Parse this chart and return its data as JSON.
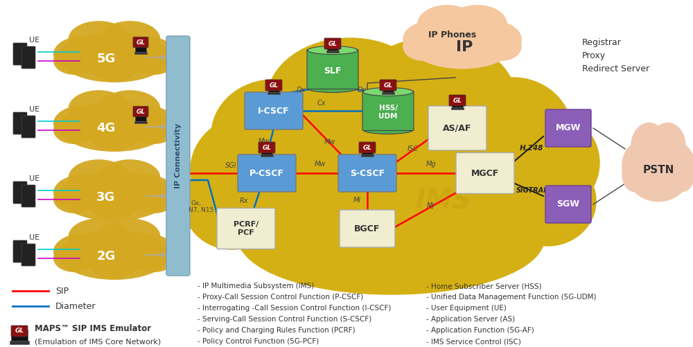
{
  "bg_color": "#ffffff",
  "ims_cloud_color": "#D4A820",
  "ip_phones_cloud_color": "#F5C8A0",
  "pstn_cloud_color": "#F0C8B0",
  "network_cloud_color": "#D4A820",
  "ip_bar_color": "#90BCD0",
  "ip_bar_text_color": "#2F4F6F",
  "ims_label": "IMS",
  "ims_label_color": "#C8A010",
  "node_blue": "#5B9BD5",
  "node_green": "#4CAF50",
  "node_cream": "#F0EDD0",
  "node_purple": "#8B5EB8",
  "gl_badge_color": "#8B0000",
  "sip_color": "#FF0000",
  "diameter_color": "#0070C0",
  "label_color": "#333333",
  "registrar_text": "Registrar\nProxy\nRedirect Server",
  "maps_label": "MAPS™ SIP IMS Emulator",
  "maps_sublabel": "(Emulation of IMS Core Network)",
  "legend_text_left": [
    "- IP Multimedia Subsystem (IMS)",
    "- Proxy-Call Session Control Function (P-CSCF)",
    "- Interrogating -Call Session Control Function (I-CSCF)",
    "- Serving-Call Session Control Function (S-CSCF)",
    "- Policy and Charging Rules Function (PCRF)",
    "- Policy Control Function (5G-PCF)"
  ],
  "legend_text_right": [
    "- Home Subscriber Server (HSS)",
    "- Unified Data Management Function (5G-UDM)",
    "- User Equipment (UE)",
    "- Application Server (AS)",
    "- Application Function (5G-AF)",
    "- IMS Service Control (ISC)"
  ]
}
